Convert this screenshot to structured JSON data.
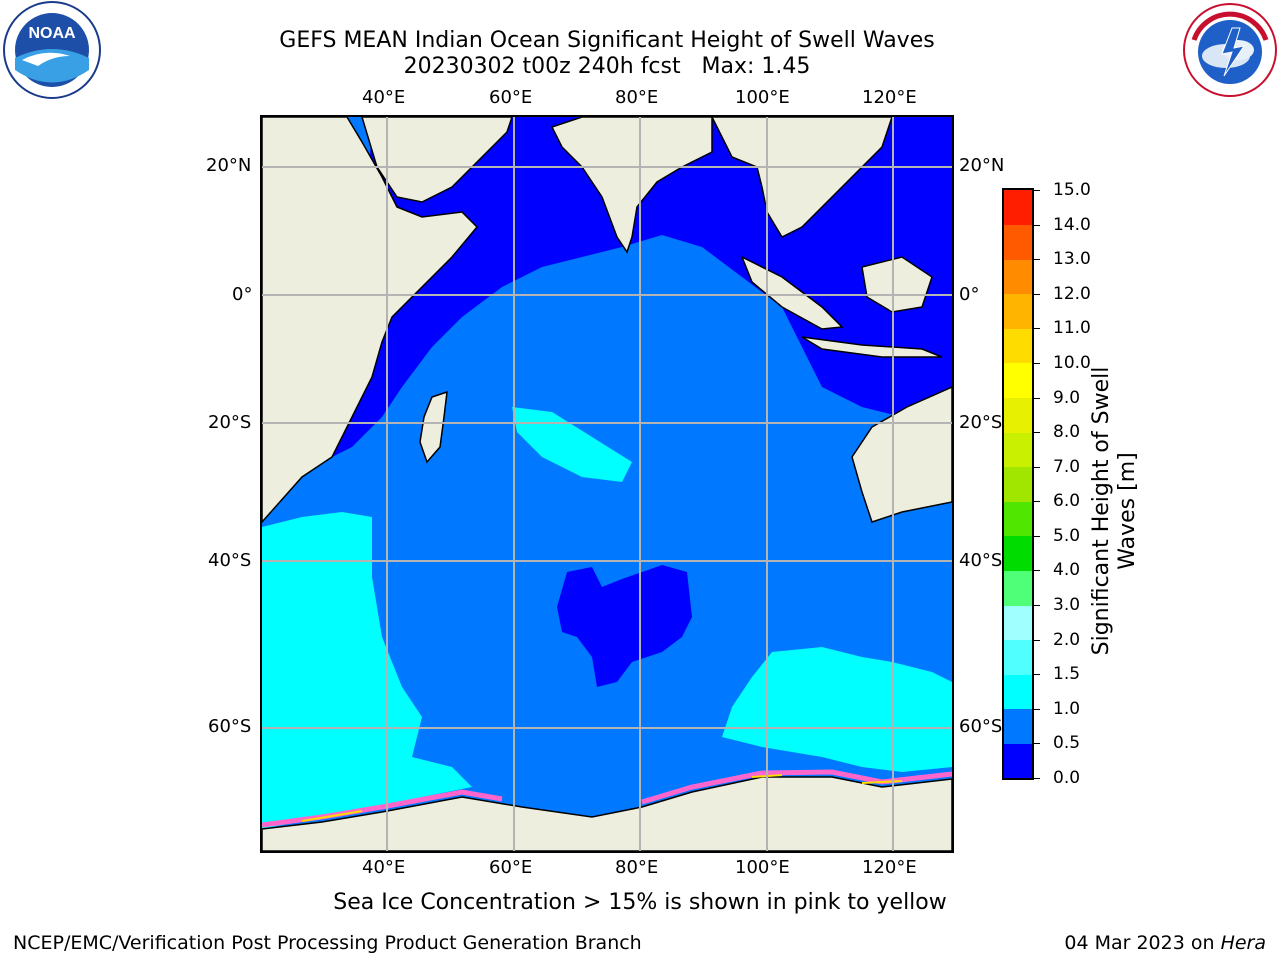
{
  "header": {
    "title_line1": "GEFS MEAN Indian Ocean Significant Height of Swell Waves",
    "title_line2": "20230302 t00z 240h fcst   Max: 1.45"
  },
  "logos": {
    "noaa_text": "NOAA",
    "noaa_ring_text": "NATIONAL OCEANIC AND ATMOSPHERIC ADMINISTRATION · U.S. DEPARTMENT OF COMMERCE",
    "nws_ring_text": "NATIONAL WEATHER SERVICE"
  },
  "map": {
    "lon_labels": [
      "40°E",
      "60°E",
      "80°E",
      "100°E",
      "120°E"
    ],
    "lat_labels": [
      "20°N",
      "0°",
      "20°S",
      "40°S",
      "60°S"
    ],
    "lon_range": [
      20,
      130
    ],
    "lat_range": [
      -73,
      25
    ],
    "colors": {
      "land": "#eeeedf",
      "ocean_0_0_5": "#0000ff",
      "ocean_0_5_1": "#0078ff",
      "ocean_1_1_5": "#00ffff",
      "sea_ice": "#ff66cc",
      "gridline": "#b4b4b4"
    }
  },
  "colorbar": {
    "label_line1": "Significant Height of Swell",
    "label_line2": "Waves [m]",
    "ticks": [
      "0.0",
      "0.5",
      "1.0",
      "1.5",
      "2.0",
      "3.0",
      "4.0",
      "5.0",
      "6.0",
      "7.0",
      "8.0",
      "9.0",
      "10.0",
      "11.0",
      "12.0",
      "13.0",
      "14.0",
      "15.0"
    ],
    "colors": [
      "#0000ff",
      "#0078ff",
      "#00ffff",
      "#50ffff",
      "#a0ffff",
      "#50ff78",
      "#00dc00",
      "#50e600",
      "#a0e600",
      "#c8f000",
      "#e6f000",
      "#ffff00",
      "#ffdc00",
      "#ffb400",
      "#ff8c00",
      "#ff5a00",
      "#ff1e00"
    ]
  },
  "caption": "Sea Ice Concentration > 15% is shown in pink to yellow",
  "footer": {
    "left": "NCEP/EMC/Verification Post Processing Product Generation Branch",
    "right_date": "04 Mar 2023 on ",
    "right_machine": "Hera"
  }
}
